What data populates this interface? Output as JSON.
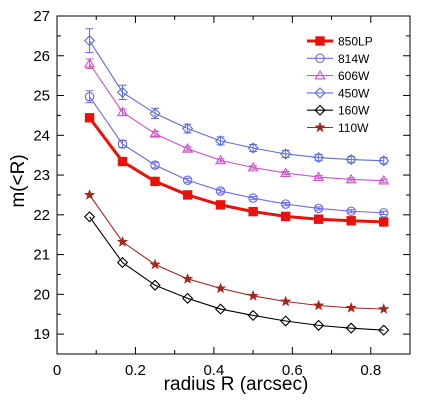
{
  "chart_data": {
    "type": "line",
    "xlabel": "radius R (arcsec)",
    "ylabel": "m(<R)",
    "xlim": [
      0,
      0.9
    ],
    "ylim": [
      18.5,
      27
    ],
    "xticks": [
      0,
      0.2,
      0.4,
      0.6,
      0.8
    ],
    "xtick_labels": [
      "0",
      "0.2",
      "0.4",
      "0.6",
      "0.8"
    ],
    "yticks": [
      19,
      20,
      21,
      22,
      23,
      24,
      25,
      26,
      27
    ],
    "ytick_labels": [
      "19",
      "20",
      "21",
      "22",
      "23",
      "24",
      "25",
      "26",
      "27"
    ],
    "grid": false,
    "legend_position": "top-right",
    "x": [
      0.083,
      0.167,
      0.25,
      0.333,
      0.417,
      0.5,
      0.583,
      0.667,
      0.75,
      0.833
    ],
    "series": [
      {
        "name": "850LP",
        "color": "#e8120c",
        "marker": "square-filled",
        "thick": true,
        "values": [
          24.44,
          23.34,
          22.84,
          22.5,
          22.25,
          22.08,
          21.96,
          21.89,
          21.85,
          21.82
        ],
        "errors": [
          0.04,
          0.03,
          0.02,
          0.02,
          0.02,
          0.02,
          0.02,
          0.02,
          0.02,
          0.02
        ]
      },
      {
        "name": "814W",
        "color": "#6a6ae8",
        "marker": "circle-open",
        "thick": false,
        "values": [
          24.97,
          23.78,
          23.25,
          22.87,
          22.6,
          22.42,
          22.27,
          22.16,
          22.09,
          22.05
        ],
        "errors": [
          0.15,
          0.09,
          0.07,
          0.05,
          0.05,
          0.04,
          0.04,
          0.04,
          0.04,
          0.04
        ]
      },
      {
        "name": "606W",
        "color": "#cc55cc",
        "marker": "triangle-open",
        "thick": false,
        "values": [
          25.8,
          24.58,
          24.04,
          23.66,
          23.37,
          23.19,
          23.05,
          22.95,
          22.89,
          22.86
        ],
        "errors": [
          0.12,
          0.08,
          0.06,
          0.05,
          0.04,
          0.04,
          0.04,
          0.04,
          0.04,
          0.04
        ]
      },
      {
        "name": "450W",
        "color": "#5b6fd9",
        "marker": "diamond-open",
        "thick": false,
        "values": [
          26.38,
          25.08,
          24.55,
          24.17,
          23.86,
          23.68,
          23.53,
          23.44,
          23.39,
          23.36
        ],
        "errors": [
          0.3,
          0.18,
          0.13,
          0.11,
          0.1,
          0.09,
          0.09,
          0.08,
          0.08,
          0.08
        ]
      },
      {
        "name": "160W",
        "color": "#000000",
        "marker": "diamond-open",
        "thick": false,
        "values": [
          21.95,
          20.8,
          20.23,
          19.9,
          19.63,
          19.47,
          19.33,
          19.22,
          19.15,
          19.1
        ],
        "errors": [
          0,
          0,
          0,
          0,
          0,
          0,
          0,
          0,
          0,
          0
        ]
      },
      {
        "name": "110W",
        "color": "#a0281e",
        "marker": "star",
        "thick": false,
        "values": [
          22.5,
          21.32,
          20.75,
          20.39,
          20.15,
          19.96,
          19.82,
          19.72,
          19.66,
          19.63
        ],
        "errors": [
          0,
          0,
          0,
          0,
          0,
          0,
          0,
          0,
          0,
          0
        ]
      }
    ]
  }
}
